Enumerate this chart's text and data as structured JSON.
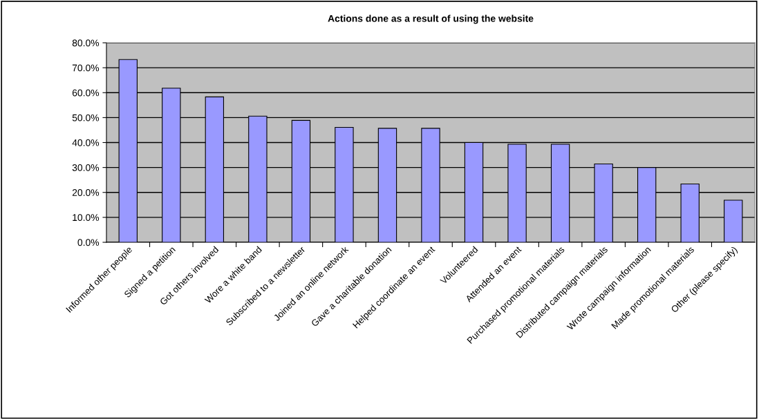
{
  "chart_data": {
    "type": "bar",
    "title": "Actions done as a result of using the website",
    "categories": [
      "Informed other people",
      "Signed a petition",
      "Got others involved",
      "Wore a white band",
      "Subscribed to a newsletter",
      "Joined an online network",
      "Gave a charitable donation",
      "Helped coordinate an event",
      "Volunteered",
      "Attended an event",
      "Purchased promotional materials",
      "Distributed campaign materials",
      "Wrote campaign information",
      "Made promotional materials",
      "Other (please specify)"
    ],
    "values": [
      73.3,
      61.8,
      58.3,
      50.6,
      48.9,
      46.1,
      45.7,
      45.7,
      40.0,
      39.3,
      39.3,
      31.4,
      30.0,
      23.4,
      16.9
    ],
    "color": "#9999ff",
    "ylim": [
      0,
      80
    ],
    "yticks": [
      {
        "value": 0,
        "label": "0.0%"
      },
      {
        "value": 10,
        "label": "10.0%"
      },
      {
        "value": 20,
        "label": "20.0%"
      },
      {
        "value": 30,
        "label": "30.0%"
      },
      {
        "value": 40,
        "label": "40.0%"
      },
      {
        "value": 50,
        "label": "50.0%"
      },
      {
        "value": 60,
        "label": "60.0%"
      },
      {
        "value": 70,
        "label": "70.0%"
      },
      {
        "value": 80,
        "label": "80.0%"
      }
    ],
    "grid": "y",
    "legend": false
  }
}
